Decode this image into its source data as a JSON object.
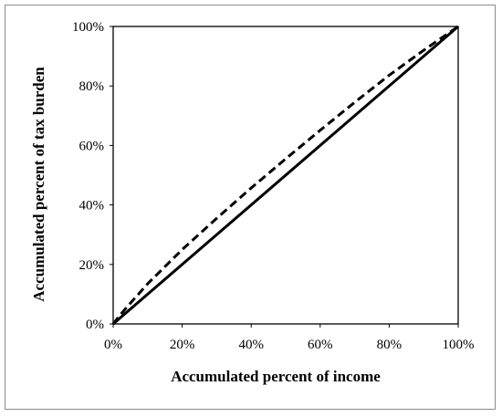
{
  "chart_data": {
    "type": "line",
    "title": "",
    "xlabel": "Accumulated percent of income",
    "ylabel": "Accumulated percent of tax burden",
    "xlim": [
      0,
      100
    ],
    "ylim": [
      0,
      100
    ],
    "x_ticks": [
      "0%",
      "20%",
      "40%",
      "60%",
      "80%",
      "100%"
    ],
    "y_ticks": [
      "0%",
      "20%",
      "40%",
      "60%",
      "80%",
      "100%"
    ],
    "grid": false,
    "legend": "none",
    "series": [
      {
        "style": "solid",
        "color": "#000000",
        "x": [
          0,
          100
        ],
        "y": [
          0,
          100
        ]
      },
      {
        "style": "dashed",
        "color": "#000000",
        "x": [
          0,
          2,
          5,
          10,
          20,
          30,
          40,
          50,
          60,
          70,
          80,
          90,
          100
        ],
        "y": [
          0,
          3,
          7,
          13.5,
          25,
          35.5,
          45.7,
          55.5,
          65.1,
          74.5,
          83.6,
          92,
          100
        ]
      }
    ]
  }
}
